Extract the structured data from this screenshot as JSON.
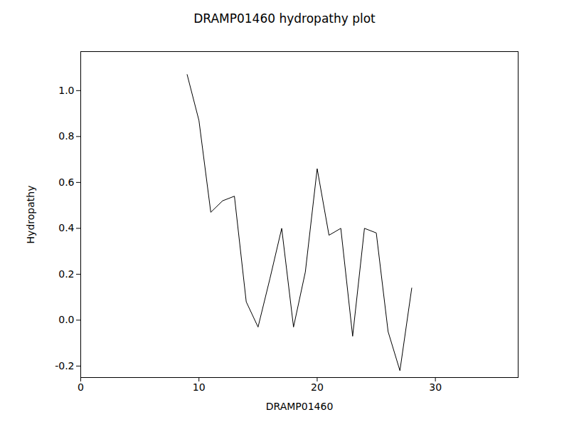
{
  "chart_data": {
    "type": "line",
    "title": "DRAMP01460 hydropathy plot",
    "x_label": "DRAMP01460",
    "y_label": "Hydropathy",
    "x": [
      9,
      10,
      11,
      12,
      13,
      14,
      15,
      16,
      17,
      18,
      19,
      20,
      21,
      22,
      23,
      24,
      25,
      26,
      27,
      28
    ],
    "values": [
      1.07,
      0.87,
      0.47,
      0.52,
      0.54,
      0.08,
      -0.03,
      0.18,
      0.4,
      -0.03,
      0.21,
      0.66,
      0.37,
      0.4,
      -0.07,
      0.4,
      0.38,
      -0.05,
      -0.22,
      0.14
    ],
    "color": "#000000",
    "xlim": [
      0,
      37
    ],
    "xticks": [
      0,
      10,
      20,
      30
    ],
    "ylim": [
      -0.25,
      1.17
    ],
    "yticks": [
      {
        "value": -0.2,
        "label": "-0.2"
      },
      {
        "value": 0,
        "label": "0.0"
      },
      {
        "value": 0.2,
        "label": "0.2"
      },
      {
        "value": 0.4,
        "label": "0.4"
      },
      {
        "value": 0.6,
        "label": "0.6"
      },
      {
        "value": 0.8,
        "label": "0.8"
      },
      {
        "value": 1.0,
        "label": "1.0"
      }
    ],
    "grid": false
  }
}
